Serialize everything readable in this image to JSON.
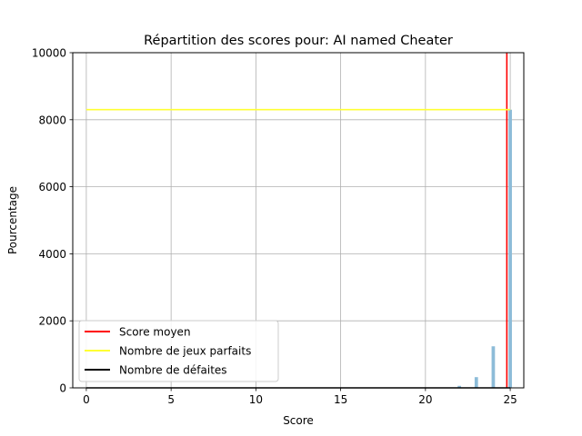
{
  "chart_data": {
    "type": "bar",
    "title": "Répartition des scores pour: AI named Cheater",
    "xlabel": "Score",
    "ylabel": "Pourcentage",
    "xlim": [
      -0.8,
      25.8
    ],
    "ylim": [
      0,
      10000
    ],
    "xticks": [
      0,
      5,
      10,
      15,
      20,
      25
    ],
    "yticks": [
      0,
      2000,
      4000,
      6000,
      8000,
      10000
    ],
    "grid": true,
    "bar_color": "#8dbcd8",
    "bars": [
      {
        "x": 22,
        "value": 60
      },
      {
        "x": 23,
        "value": 320
      },
      {
        "x": 24,
        "value": 1240
      },
      {
        "x": 25,
        "value": 8300
      }
    ],
    "lines": [
      {
        "name": "Score moyen",
        "kind": "vertical",
        "x": 24.8,
        "color": "#ff0000"
      },
      {
        "name": "Nombre de jeux parfaits",
        "kind": "horizontal",
        "y": 8300,
        "x_from": 0,
        "x_to": 25,
        "color": "#ffff33"
      },
      {
        "name": "Nombre de défaites",
        "kind": "horizontal",
        "y": 0,
        "x_from": 0,
        "x_to": 25,
        "color": "#000000"
      }
    ],
    "legend": {
      "position": "lower-left"
    }
  }
}
